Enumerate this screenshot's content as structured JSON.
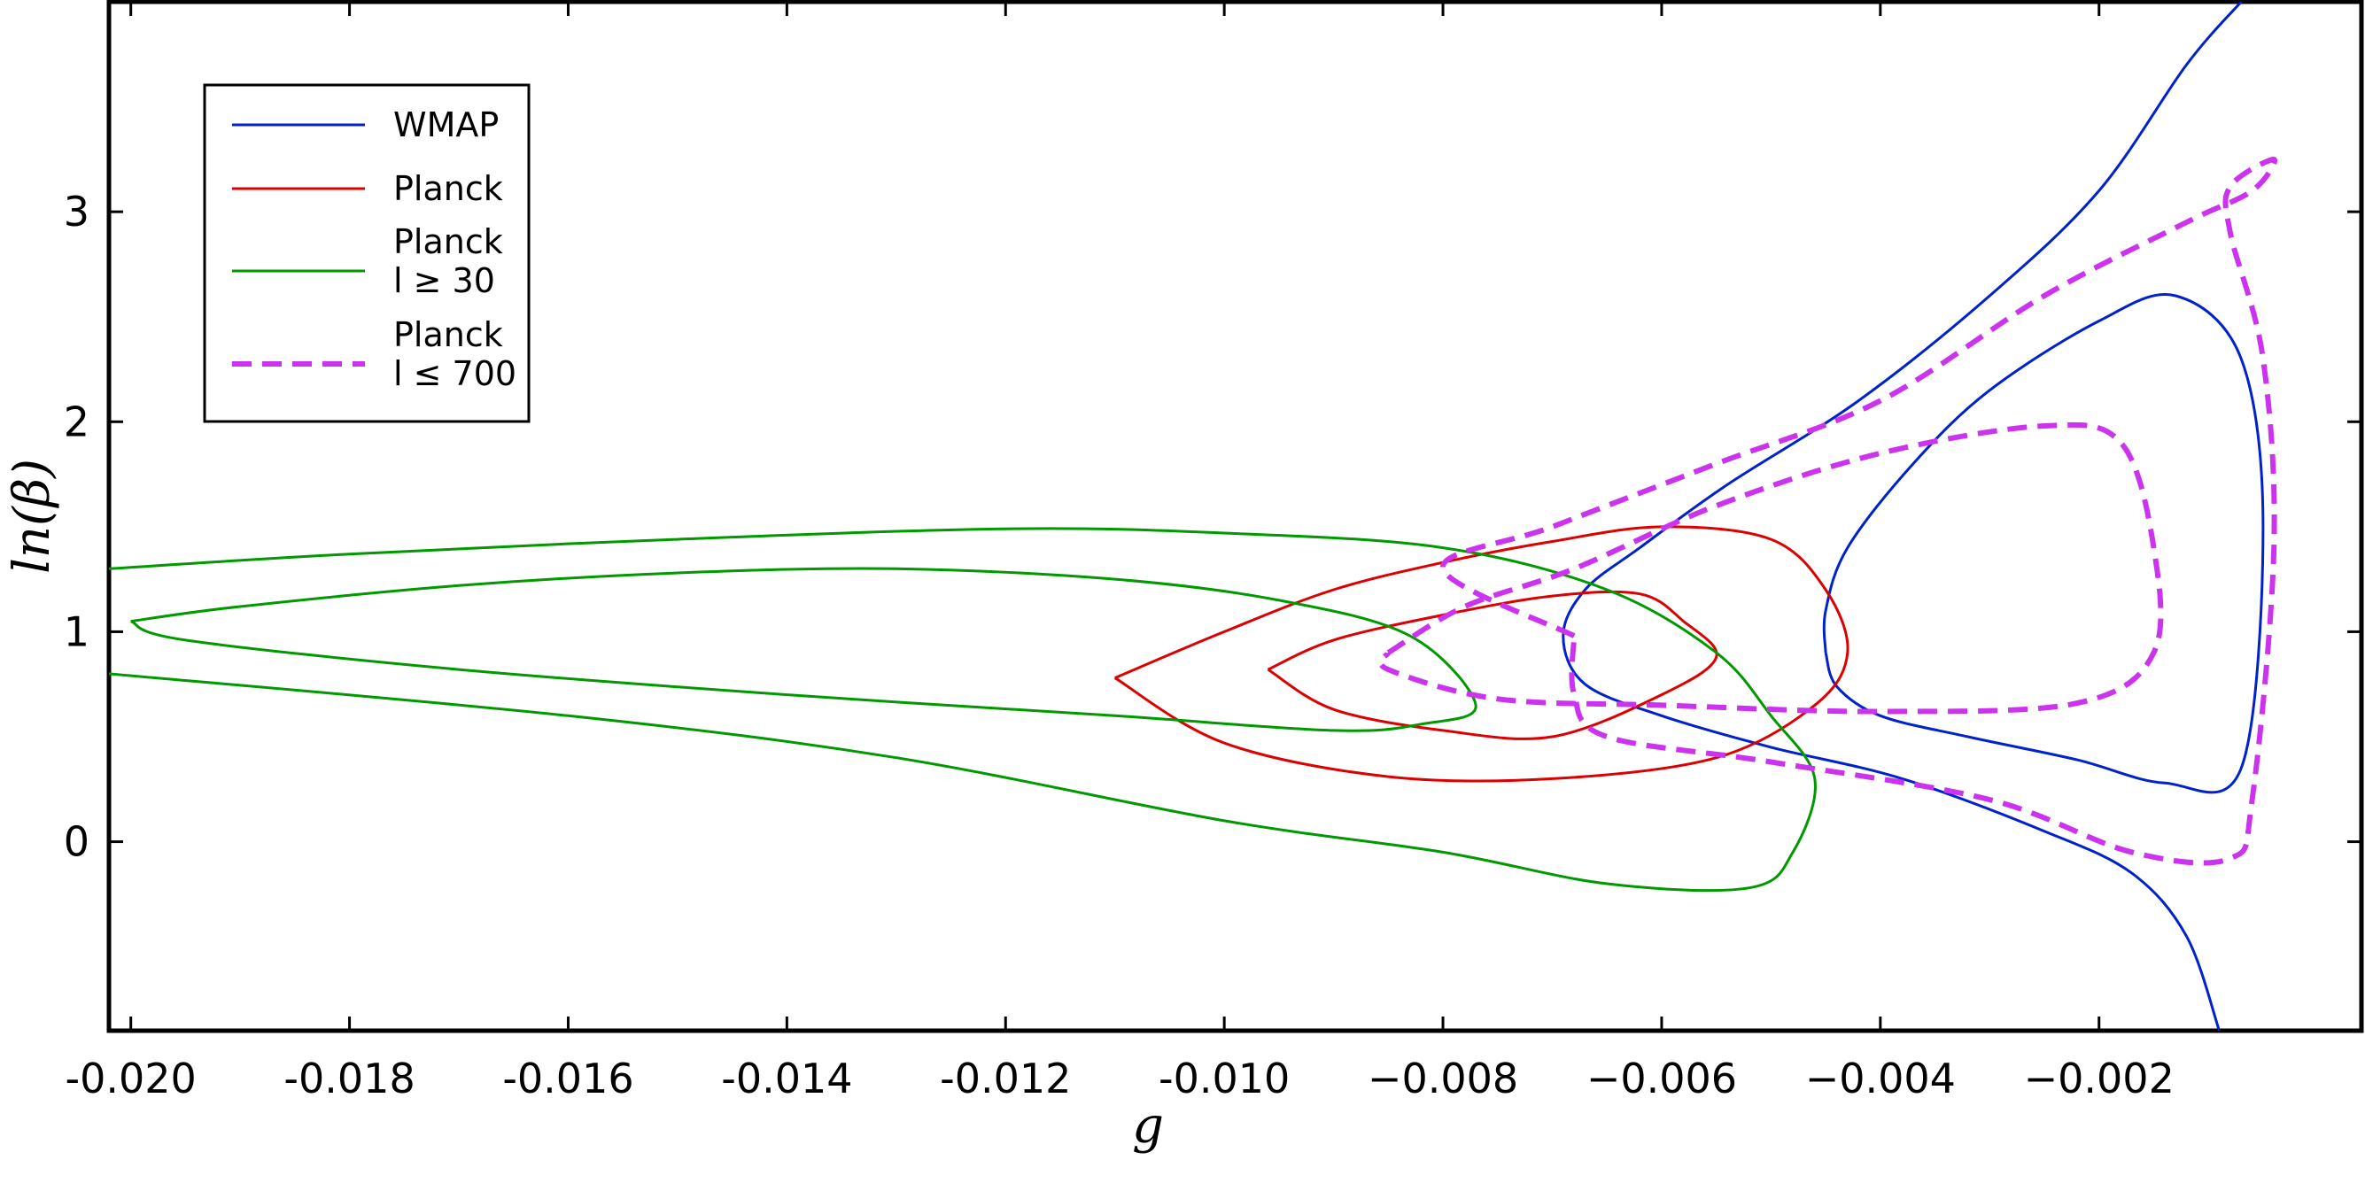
{
  "chart_data": {
    "type": "line",
    "title": "",
    "xlabel": "g",
    "ylabel": "ln(β)",
    "xlim": [
      -0.0202,
      0.0004
    ],
    "ylim": [
      -0.9,
      4.0
    ],
    "grid": false,
    "legend_placement": "top-left",
    "xticks": [
      {
        "value": -0.02,
        "label": "-0.020"
      },
      {
        "value": -0.018,
        "label": "-0.018"
      },
      {
        "value": -0.016,
        "label": "-0.016"
      },
      {
        "value": -0.014,
        "label": "-0.014"
      },
      {
        "value": -0.012,
        "label": "-0.012"
      },
      {
        "value": -0.01,
        "label": "-0.010"
      },
      {
        "value": -0.008,
        "label": "−0.008"
      },
      {
        "value": -0.006,
        "label": "−0.006"
      },
      {
        "value": -0.004,
        "label": "−0.004"
      },
      {
        "value": -0.002,
        "label": "−0.002"
      }
    ],
    "yticks": [
      {
        "value": 0,
        "label": "0"
      },
      {
        "value": 1,
        "label": "1"
      },
      {
        "value": 2,
        "label": "2"
      },
      {
        "value": 3,
        "label": "3"
      }
    ],
    "legend": [
      {
        "key": "wmap",
        "lines": [
          "WMAP"
        ]
      },
      {
        "key": "planck",
        "lines": [
          "Planck"
        ]
      },
      {
        "key": "planck_l30",
        "lines": [
          "Planck",
          "l ≥ 30"
        ]
      },
      {
        "key": "planck_l700",
        "lines": [
          "Planck",
          "l ≤ 700"
        ]
      }
    ],
    "series": [
      {
        "key": "wmap",
        "color": "#0022cc",
        "dash": "solid",
        "contours": [
          [
            [
              -0.0045,
              0.9
            ],
            [
              -0.0044,
              0.74
            ],
            [
              -0.004,
              0.6
            ],
            [
              -0.0032,
              0.5
            ],
            [
              -0.0022,
              0.39
            ],
            [
              -0.0014,
              0.28
            ],
            [
              -0.0007,
              0.35
            ],
            [
              -0.0005,
              1.5
            ],
            [
              -0.0007,
              2.3
            ],
            [
              -0.0013,
              2.6
            ],
            [
              -0.002,
              2.48
            ],
            [
              -0.003,
              2.15
            ],
            [
              -0.0037,
              1.8
            ],
            [
              -0.0043,
              1.4
            ],
            [
              -0.0045,
              1.1
            ],
            [
              -0.0045,
              0.9
            ]
          ],
          [
            [
              -0.0007,
              4.0
            ],
            [
              -0.0012,
              3.7
            ],
            [
              -0.002,
              3.1
            ],
            [
              -0.003,
              2.6
            ],
            [
              -0.0042,
              2.1
            ],
            [
              -0.0054,
              1.7
            ],
            [
              -0.0062,
              1.4
            ],
            [
              -0.0067,
              1.2
            ],
            [
              -0.0069,
              0.98
            ],
            [
              -0.0067,
              0.75
            ],
            [
              -0.006,
              0.6
            ],
            [
              -0.005,
              0.45
            ],
            [
              -0.0038,
              0.3
            ],
            [
              -0.0025,
              0.05
            ],
            [
              -0.0017,
              -0.15
            ],
            [
              -0.0012,
              -0.45
            ],
            [
              -0.0009,
              -0.9
            ]
          ]
        ]
      },
      {
        "key": "planck",
        "color": "#dd0000",
        "dash": "solid",
        "contours": [
          [
            [
              -0.0096,
              0.82
            ],
            [
              -0.009,
              0.96
            ],
            [
              -0.008,
              1.08
            ],
            [
              -0.007,
              1.17
            ],
            [
              -0.0062,
              1.18
            ],
            [
              -0.0058,
              1.05
            ],
            [
              -0.0055,
              0.88
            ],
            [
              -0.006,
              0.7
            ],
            [
              -0.007,
              0.5
            ],
            [
              -0.008,
              0.53
            ],
            [
              -0.009,
              0.63
            ],
            [
              -0.0096,
              0.82
            ]
          ],
          [
            [
              -0.011,
              0.78
            ],
            [
              -0.01,
              1.0
            ],
            [
              -0.009,
              1.2
            ],
            [
              -0.008,
              1.33
            ],
            [
              -0.007,
              1.43
            ],
            [
              -0.006,
              1.5
            ],
            [
              -0.005,
              1.44
            ],
            [
              -0.0045,
              1.2
            ],
            [
              -0.0043,
              0.9
            ],
            [
              -0.0046,
              0.65
            ],
            [
              -0.0055,
              0.4
            ],
            [
              -0.007,
              0.3
            ],
            [
              -0.0085,
              0.31
            ],
            [
              -0.01,
              0.47
            ],
            [
              -0.011,
              0.78
            ]
          ]
        ]
      },
      {
        "key": "planck_l30",
        "color": "#009900",
        "dash": "solid",
        "contours": [
          [
            [
              -0.0202,
              1.3
            ],
            [
              -0.018,
              1.37
            ],
            [
              -0.015,
              1.44
            ],
            [
              -0.012,
              1.49
            ],
            [
              -0.01,
              1.47
            ],
            [
              -0.008,
              1.4
            ],
            [
              -0.0065,
              1.2
            ],
            [
              -0.0055,
              0.9
            ],
            [
              -0.005,
              0.6
            ],
            [
              -0.0046,
              0.3
            ],
            [
              -0.0048,
              -0.05
            ],
            [
              -0.0052,
              -0.22
            ],
            [
              -0.0065,
              -0.2
            ],
            [
              -0.008,
              -0.05
            ],
            [
              -0.01,
              0.1
            ],
            [
              -0.013,
              0.4
            ],
            [
              -0.016,
              0.6
            ],
            [
              -0.0202,
              0.8
            ]
          ],
          [
            [
              -0.02,
              1.05
            ],
            [
              -0.019,
              1.12
            ],
            [
              -0.017,
              1.22
            ],
            [
              -0.015,
              1.28
            ],
            [
              -0.013,
              1.3
            ],
            [
              -0.011,
              1.25
            ],
            [
              -0.0095,
              1.15
            ],
            [
              -0.0083,
              0.98
            ],
            [
              -0.0077,
              0.65
            ],
            [
              -0.0082,
              0.56
            ],
            [
              -0.009,
              0.53
            ],
            [
              -0.011,
              0.6
            ],
            [
              -0.014,
              0.7
            ],
            [
              -0.017,
              0.82
            ],
            [
              -0.0195,
              0.96
            ],
            [
              -0.02,
              1.05
            ]
          ]
        ]
      },
      {
        "key": "planck_l700",
        "color": "#cc33ee",
        "dash": "dashed",
        "contours": [
          [
            [
              -0.0085,
              0.9
            ],
            [
              -0.0078,
              1.12
            ],
            [
              -0.0068,
              1.3
            ],
            [
              -0.0055,
              1.6
            ],
            [
              -0.004,
              1.85
            ],
            [
              -0.0025,
              1.98
            ],
            [
              -0.0018,
              1.9
            ],
            [
              -0.0015,
              1.4
            ],
            [
              -0.0015,
              0.9
            ],
            [
              -0.0022,
              0.66
            ],
            [
              -0.004,
              0.62
            ],
            [
              -0.006,
              0.65
            ],
            [
              -0.0075,
              0.68
            ],
            [
              -0.0085,
              0.82
            ],
            [
              -0.0085,
              0.9
            ]
          ],
          [
            [
              -0.0068,
              0.98
            ],
            [
              -0.008,
              1.3
            ],
            [
              -0.007,
              1.5
            ],
            [
              -0.0055,
              1.8
            ],
            [
              -0.004,
              2.1
            ],
            [
              -0.0025,
              2.6
            ],
            [
              -0.0012,
              2.95
            ],
            [
              -0.0006,
              3.1
            ],
            [
              -0.0004,
              3.25
            ],
            [
              -0.0008,
              3.12
            ],
            [
              -0.0008,
              2.9
            ],
            [
              -0.0005,
              2.3
            ],
            [
              -0.0004,
              1.4
            ],
            [
              -0.0006,
              0.2
            ],
            [
              -0.0008,
              -0.08
            ],
            [
              -0.0017,
              -0.05
            ],
            [
              -0.003,
              0.2
            ],
            [
              -0.005,
              0.38
            ],
            [
              -0.0065,
              0.5
            ],
            [
              -0.0068,
              0.7
            ],
            [
              -0.0068,
              0.98
            ]
          ]
        ]
      }
    ]
  }
}
